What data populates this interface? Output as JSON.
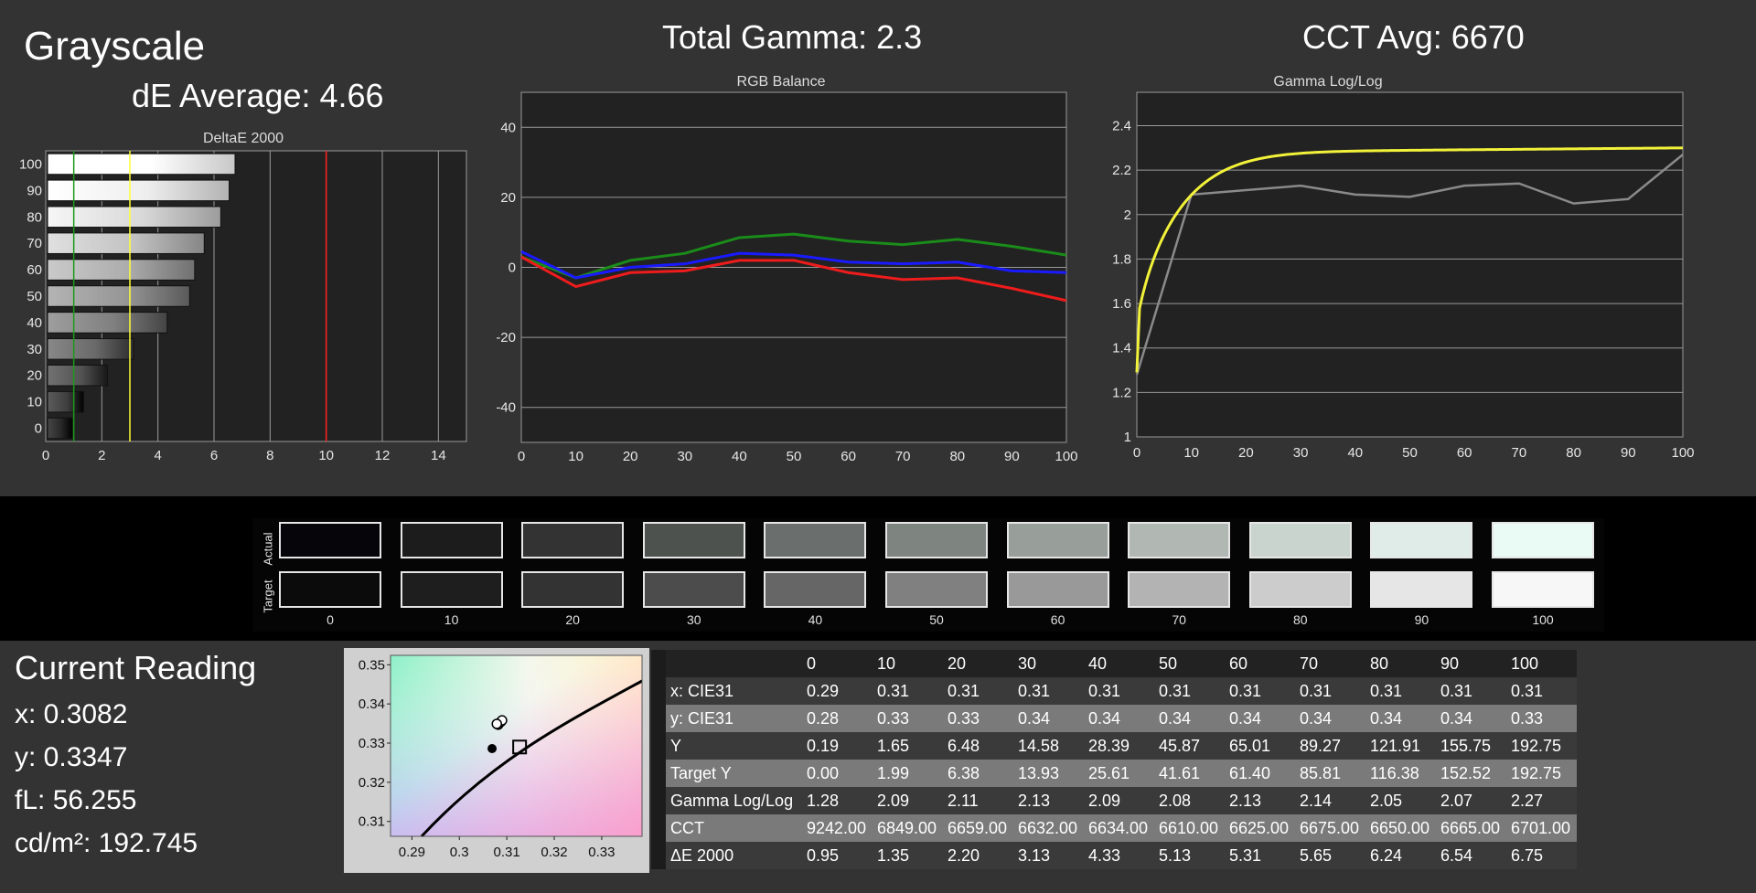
{
  "page": {
    "title": "Grayscale",
    "de_average": "dE Average: 4.66",
    "total_gamma": "Total Gamma: 2.3",
    "cct_avg": "CCT Avg: 6670"
  },
  "swatches": {
    "actual_label": "Actual",
    "target_label": "Target",
    "levels": [
      "0",
      "10",
      "20",
      "30",
      "40",
      "50",
      "60",
      "70",
      "80",
      "90",
      "100"
    ],
    "actual_colors": [
      "#06060a",
      "#1c1c1c",
      "#333333",
      "#4d524e",
      "#6a6e6c",
      "#7e8480",
      "#989e9a",
      "#b1b8b4",
      "#cad4ce",
      "#e0ece7",
      "#eafaf4"
    ],
    "target_colors": [
      "#0b0b0b",
      "#1e1e1e",
      "#333333",
      "#4c4c4c",
      "#666666",
      "#808080",
      "#999999",
      "#b3b3b3",
      "#cccccc",
      "#e6e6e6",
      "#f7f7f7"
    ]
  },
  "current_reading": {
    "title": "Current Reading",
    "x": "x: 0.3082",
    "y": "y: 0.3347",
    "fl": "fL: 56.255",
    "cdm2": "cd/m²: 192.745"
  },
  "table": {
    "columns": [
      "0",
      "10",
      "20",
      "30",
      "40",
      "50",
      "60",
      "70",
      "80",
      "90",
      "100"
    ],
    "rows": [
      {
        "label": "x: CIE31",
        "values": [
          "0.29",
          "0.31",
          "0.31",
          "0.31",
          "0.31",
          "0.31",
          "0.31",
          "0.31",
          "0.31",
          "0.31",
          "0.31"
        ]
      },
      {
        "label": "y: CIE31",
        "values": [
          "0.28",
          "0.33",
          "0.33",
          "0.34",
          "0.34",
          "0.34",
          "0.34",
          "0.34",
          "0.34",
          "0.34",
          "0.33"
        ]
      },
      {
        "label": "Y",
        "values": [
          "0.19",
          "1.65",
          "6.48",
          "14.58",
          "28.39",
          "45.87",
          "65.01",
          "89.27",
          "121.91",
          "155.75",
          "192.75"
        ]
      },
      {
        "label": "Target Y",
        "values": [
          "0.00",
          "1.99",
          "6.38",
          "13.93",
          "25.61",
          "41.61",
          "61.40",
          "85.81",
          "116.38",
          "152.52",
          "192.75"
        ]
      },
      {
        "label": "Gamma Log/Log",
        "values": [
          "1.28",
          "2.09",
          "2.11",
          "2.13",
          "2.09",
          "2.08",
          "2.13",
          "2.14",
          "2.05",
          "2.07",
          "2.27"
        ]
      },
      {
        "label": "CCT",
        "values": [
          "9242.00",
          "6849.00",
          "6659.00",
          "6632.00",
          "6634.00",
          "6610.00",
          "6625.00",
          "6675.00",
          "6650.00",
          "6665.00",
          "6701.00"
        ]
      },
      {
        "label": "ΔE 2000",
        "values": [
          "0.95",
          "1.35",
          "2.20",
          "3.13",
          "4.33",
          "5.13",
          "5.31",
          "5.65",
          "6.24",
          "6.54",
          "6.75"
        ]
      }
    ]
  },
  "chart_data": [
    {
      "type": "bar",
      "title": "DeltaE 2000",
      "orientation": "horizontal",
      "categories": [
        "100",
        "90",
        "80",
        "70",
        "60",
        "50",
        "40",
        "30",
        "20",
        "10",
        "0"
      ],
      "values": [
        6.75,
        6.54,
        6.24,
        5.65,
        5.31,
        5.13,
        4.33,
        3.13,
        2.2,
        1.35,
        0.95
      ],
      "xlim": [
        0,
        15
      ],
      "xticks": [
        "0",
        "2",
        "4",
        "6",
        "8",
        "10",
        "12",
        "14"
      ],
      "reference_lines": [
        {
          "value": 1,
          "color": "#1a9a1a"
        },
        {
          "value": 3,
          "color": "#ffff33"
        },
        {
          "value": 10,
          "color": "#ff2222"
        }
      ]
    },
    {
      "type": "line",
      "title": "RGB Balance",
      "x": [
        0,
        10,
        20,
        30,
        40,
        50,
        60,
        70,
        80,
        90,
        100
      ],
      "xticks": [
        "0",
        "10",
        "20",
        "30",
        "40",
        "50",
        "60",
        "70",
        "80",
        "90",
        "100"
      ],
      "yticks": [
        "40",
        "20",
        "0",
        "-20",
        "-40"
      ],
      "ylim": [
        -50,
        50
      ],
      "series": [
        {
          "color": "#1a8c1a",
          "values": [
            3,
            -3,
            2,
            4,
            8.5,
            9.5,
            7.5,
            6.5,
            8,
            6,
            3.5
          ]
        },
        {
          "color": "#1a1aff",
          "values": [
            4.5,
            -3,
            0,
            1,
            4,
            3.5,
            1.5,
            1,
            1.5,
            -1,
            -1.5
          ]
        },
        {
          "color": "#ee1c1c",
          "values": [
            3,
            -5.5,
            -1.5,
            -1,
            2,
            2,
            -1.5,
            -3.5,
            -3,
            -6,
            -9.5
          ]
        }
      ]
    },
    {
      "type": "line",
      "title": "Gamma Log/Log",
      "x": [
        0,
        10,
        20,
        30,
        40,
        50,
        60,
        70,
        80,
        90,
        100
      ],
      "xticks": [
        "0",
        "10",
        "20",
        "30",
        "40",
        "50",
        "60",
        "70",
        "80",
        "90",
        "100"
      ],
      "yticks": [
        "2.4",
        "2.2",
        "2",
        "1.8",
        "1.6",
        "1.4",
        "1.2",
        "1"
      ],
      "ylim": [
        1,
        2.4
      ],
      "series": [
        {
          "color": "#8a8a8a",
          "values": [
            1.28,
            2.09,
            2.11,
            2.13,
            2.09,
            2.08,
            2.13,
            2.14,
            2.05,
            2.07,
            2.27
          ]
        },
        {
          "color": "#f2f23a",
          "curve": "target gamma 2.3"
        }
      ]
    },
    {
      "type": "scatter",
      "title": "",
      "xticks": [
        "0.29",
        "0.3",
        "0.31",
        "0.32",
        "0.33"
      ],
      "yticks": [
        "0.35",
        "0.34",
        "0.33",
        "0.32",
        "0.31"
      ],
      "xlim": [
        0.2855,
        0.3385
      ],
      "ylim": [
        0.3062,
        0.3524
      ],
      "points_measured": [
        [
          0.3082,
          0.3347
        ],
        [
          0.3085,
          0.3352
        ],
        [
          0.3088,
          0.3355
        ],
        [
          0.309,
          0.3358
        ],
        [
          0.3079,
          0.3349
        ]
      ],
      "point_black": [
        0.3069,
        0.3286
      ],
      "target_square": [
        0.3127,
        0.329
      ]
    }
  ]
}
